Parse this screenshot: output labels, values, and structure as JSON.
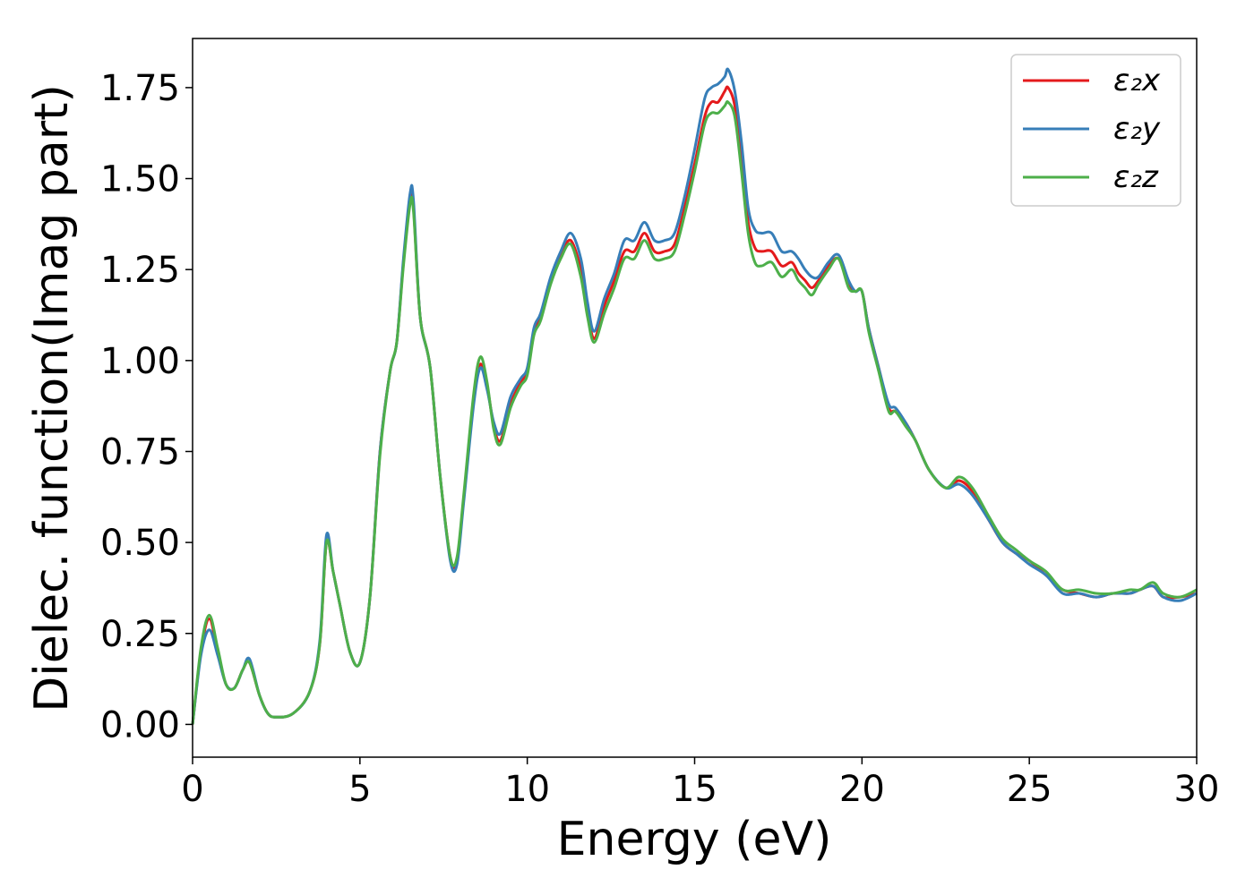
{
  "chart_data": {
    "type": "line",
    "title": "",
    "xlabel": "Energy (eV)",
    "ylabel": "Dielec. function(Imag part)",
    "xlim": [
      0,
      30
    ],
    "ylim": [
      -0.09,
      1.885
    ],
    "xticks": [
      0,
      5,
      10,
      15,
      20,
      25,
      30
    ],
    "xtick_labels": [
      "0",
      "5",
      "10",
      "15",
      "20",
      "25",
      "30"
    ],
    "yticks": [
      0.0,
      0.25,
      0.5,
      0.75,
      1.0,
      1.25,
      1.5,
      1.75
    ],
    "ytick_labels": [
      "0.00",
      "0.25",
      "0.50",
      "0.75",
      "1.00",
      "1.25",
      "1.50",
      "1.75"
    ],
    "grid": false,
    "legend_position": "top-right",
    "series": [
      {
        "name": "ε₂x",
        "color": "#e41a1c",
        "x": [
          0,
          0.25,
          0.5,
          0.75,
          1.0,
          1.25,
          1.5,
          1.7,
          2.0,
          2.25,
          2.5,
          3.0,
          3.5,
          3.8,
          4.0,
          4.2,
          4.4,
          4.7,
          5.0,
          5.3,
          5.6,
          5.9,
          6.1,
          6.3,
          6.5,
          6.6,
          6.8,
          7.1,
          7.4,
          7.7,
          7.9,
          8.1,
          8.4,
          8.6,
          8.8,
          9.0,
          9.2,
          9.5,
          9.8,
          10.0,
          10.2,
          10.4,
          10.7,
          11.0,
          11.3,
          11.6,
          11.8,
          12.0,
          12.3,
          12.6,
          12.9,
          13.2,
          13.5,
          13.8,
          14.1,
          14.4,
          14.7,
          15.0,
          15.3,
          15.5,
          15.7,
          15.9,
          16.0,
          16.2,
          16.4,
          16.6,
          16.8,
          17.0,
          17.3,
          17.6,
          17.9,
          18.1,
          18.3,
          18.5,
          18.7,
          19.0,
          19.3,
          19.6,
          19.8,
          20.0,
          20.2,
          20.5,
          20.8,
          21.0,
          21.3,
          21.6,
          22.0,
          22.5,
          22.9,
          23.3,
          23.8,
          24.2,
          24.6,
          25.0,
          25.5,
          26.0,
          26.5,
          27.0,
          27.5,
          28.0,
          28.3,
          28.7,
          29.0,
          29.5,
          30.0
        ],
        "y": [
          0.0,
          0.2,
          0.29,
          0.2,
          0.11,
          0.1,
          0.15,
          0.17,
          0.08,
          0.03,
          0.02,
          0.03,
          0.09,
          0.22,
          0.5,
          0.42,
          0.33,
          0.2,
          0.17,
          0.35,
          0.75,
          0.97,
          1.05,
          1.27,
          1.44,
          1.42,
          1.12,
          0.98,
          0.68,
          0.46,
          0.45,
          0.62,
          0.9,
          0.99,
          0.93,
          0.82,
          0.78,
          0.88,
          0.94,
          0.97,
          1.08,
          1.12,
          1.22,
          1.29,
          1.33,
          1.25,
          1.14,
          1.06,
          1.15,
          1.22,
          1.3,
          1.3,
          1.35,
          1.3,
          1.3,
          1.32,
          1.42,
          1.54,
          1.67,
          1.71,
          1.71,
          1.74,
          1.75,
          1.7,
          1.55,
          1.38,
          1.31,
          1.3,
          1.3,
          1.26,
          1.27,
          1.24,
          1.22,
          1.2,
          1.22,
          1.26,
          1.28,
          1.21,
          1.19,
          1.19,
          1.09,
          0.98,
          0.87,
          0.86,
          0.83,
          0.78,
          0.7,
          0.65,
          0.67,
          0.64,
          0.56,
          0.5,
          0.47,
          0.45,
          0.41,
          0.37,
          0.36,
          0.35,
          0.36,
          0.36,
          0.37,
          0.38,
          0.35,
          0.35,
          0.36
        ]
      },
      {
        "name": "ε₂y",
        "color": "#377eb8",
        "x": [
          0,
          0.25,
          0.5,
          0.75,
          1.0,
          1.25,
          1.5,
          1.7,
          2.0,
          2.25,
          2.5,
          3.0,
          3.5,
          3.8,
          4.0,
          4.2,
          4.4,
          4.7,
          5.0,
          5.3,
          5.6,
          5.9,
          6.1,
          6.3,
          6.5,
          6.6,
          6.8,
          7.1,
          7.4,
          7.7,
          7.9,
          8.1,
          8.4,
          8.6,
          8.8,
          9.0,
          9.2,
          9.5,
          9.8,
          10.0,
          10.2,
          10.4,
          10.7,
          11.0,
          11.3,
          11.6,
          11.8,
          12.0,
          12.3,
          12.6,
          12.9,
          13.2,
          13.5,
          13.8,
          14.1,
          14.4,
          14.7,
          15.0,
          15.3,
          15.5,
          15.7,
          15.9,
          16.0,
          16.2,
          16.4,
          16.6,
          16.8,
          17.0,
          17.3,
          17.6,
          17.9,
          18.1,
          18.3,
          18.5,
          18.7,
          19.0,
          19.3,
          19.6,
          19.8,
          20.0,
          20.2,
          20.5,
          20.8,
          21.0,
          21.3,
          21.6,
          22.0,
          22.5,
          22.9,
          23.3,
          23.8,
          24.2,
          24.6,
          25.0,
          25.5,
          26.0,
          26.5,
          27.0,
          27.5,
          28.0,
          28.3,
          28.7,
          29.0,
          29.5,
          30.0
        ],
        "y": [
          0.0,
          0.19,
          0.26,
          0.19,
          0.11,
          0.1,
          0.15,
          0.18,
          0.08,
          0.03,
          0.02,
          0.03,
          0.09,
          0.23,
          0.52,
          0.42,
          0.33,
          0.2,
          0.17,
          0.35,
          0.75,
          0.97,
          1.05,
          1.28,
          1.46,
          1.44,
          1.12,
          0.98,
          0.68,
          0.45,
          0.44,
          0.61,
          0.88,
          0.98,
          0.92,
          0.83,
          0.8,
          0.9,
          0.95,
          0.98,
          1.09,
          1.13,
          1.23,
          1.3,
          1.35,
          1.28,
          1.16,
          1.08,
          1.17,
          1.24,
          1.33,
          1.33,
          1.38,
          1.33,
          1.33,
          1.35,
          1.45,
          1.58,
          1.72,
          1.75,
          1.76,
          1.78,
          1.8,
          1.74,
          1.6,
          1.42,
          1.36,
          1.35,
          1.35,
          1.3,
          1.3,
          1.28,
          1.25,
          1.23,
          1.23,
          1.27,
          1.29,
          1.22,
          1.19,
          1.19,
          1.09,
          0.98,
          0.88,
          0.87,
          0.83,
          0.78,
          0.7,
          0.65,
          0.66,
          0.63,
          0.56,
          0.5,
          0.47,
          0.44,
          0.41,
          0.36,
          0.36,
          0.35,
          0.36,
          0.36,
          0.37,
          0.38,
          0.35,
          0.34,
          0.36
        ]
      },
      {
        "name": "ε₂z",
        "color": "#4daf4a",
        "x": [
          0,
          0.25,
          0.5,
          0.75,
          1.0,
          1.25,
          1.5,
          1.7,
          2.0,
          2.25,
          2.5,
          3.0,
          3.5,
          3.8,
          4.0,
          4.2,
          4.4,
          4.7,
          5.0,
          5.3,
          5.6,
          5.9,
          6.1,
          6.3,
          6.5,
          6.6,
          6.8,
          7.1,
          7.4,
          7.7,
          7.9,
          8.1,
          8.4,
          8.6,
          8.8,
          9.0,
          9.2,
          9.5,
          9.8,
          10.0,
          10.2,
          10.4,
          10.7,
          11.0,
          11.3,
          11.6,
          11.8,
          12.0,
          12.3,
          12.6,
          12.9,
          13.2,
          13.5,
          13.8,
          14.1,
          14.4,
          14.7,
          15.0,
          15.3,
          15.5,
          15.7,
          15.9,
          16.0,
          16.2,
          16.4,
          16.6,
          16.8,
          17.0,
          17.3,
          17.6,
          17.9,
          18.1,
          18.3,
          18.5,
          18.7,
          19.0,
          19.3,
          19.6,
          19.8,
          20.0,
          20.2,
          20.5,
          20.8,
          21.0,
          21.3,
          21.6,
          22.0,
          22.5,
          22.9,
          23.3,
          23.8,
          24.2,
          24.6,
          25.0,
          25.5,
          26.0,
          26.5,
          27.0,
          27.5,
          28.0,
          28.3,
          28.7,
          29.0,
          29.5,
          30.0
        ],
        "y": [
          0.0,
          0.21,
          0.3,
          0.21,
          0.11,
          0.1,
          0.15,
          0.17,
          0.08,
          0.03,
          0.02,
          0.03,
          0.09,
          0.22,
          0.5,
          0.42,
          0.33,
          0.2,
          0.17,
          0.35,
          0.74,
          0.97,
          1.05,
          1.26,
          1.43,
          1.41,
          1.12,
          0.98,
          0.68,
          0.46,
          0.46,
          0.63,
          0.91,
          1.01,
          0.94,
          0.81,
          0.77,
          0.87,
          0.93,
          0.96,
          1.07,
          1.11,
          1.21,
          1.28,
          1.32,
          1.23,
          1.12,
          1.05,
          1.13,
          1.2,
          1.28,
          1.28,
          1.33,
          1.28,
          1.28,
          1.3,
          1.4,
          1.52,
          1.65,
          1.68,
          1.68,
          1.7,
          1.71,
          1.67,
          1.52,
          1.35,
          1.27,
          1.26,
          1.27,
          1.23,
          1.25,
          1.22,
          1.2,
          1.18,
          1.21,
          1.25,
          1.28,
          1.2,
          1.19,
          1.19,
          1.08,
          0.97,
          0.86,
          0.86,
          0.82,
          0.78,
          0.7,
          0.65,
          0.68,
          0.65,
          0.57,
          0.51,
          0.48,
          0.45,
          0.42,
          0.37,
          0.37,
          0.36,
          0.36,
          0.37,
          0.37,
          0.39,
          0.36,
          0.35,
          0.37
        ]
      }
    ]
  }
}
